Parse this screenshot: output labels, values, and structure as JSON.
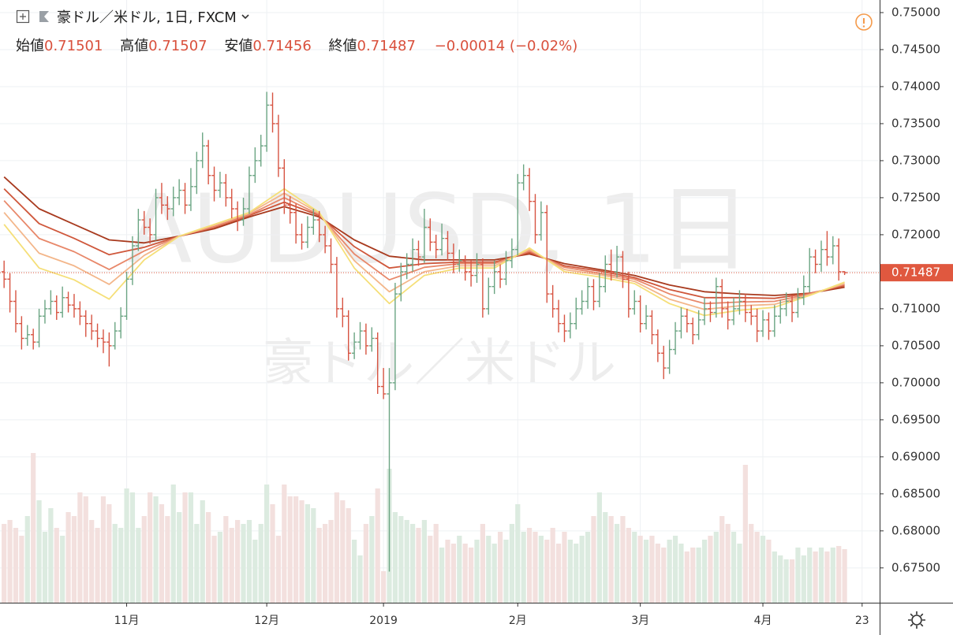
{
  "header": {
    "symbol": "豪ドル／米ドル, 1日, FXCM",
    "open_label": "始値",
    "high_label": "高値",
    "low_label": "安値",
    "close_label": "終値",
    "change": "−0.00014 (−0.02%)"
  },
  "watermark": {
    "line1": "AUDUSD, 1日",
    "line2": "豪ドル／米ドル"
  },
  "chart_data": {
    "type": "ohlc",
    "x": [
      0,
      1,
      2,
      3,
      4,
      5,
      6,
      7,
      8,
      9,
      10,
      11,
      12,
      13,
      14,
      15,
      16,
      17,
      18,
      19,
      20,
      21,
      22,
      23,
      24,
      25,
      26,
      27,
      28,
      29,
      30,
      31,
      32,
      33,
      34,
      35,
      36,
      37,
      38,
      39,
      40,
      41,
      42,
      43,
      44,
      45,
      46,
      47,
      48,
      49,
      50,
      51,
      52,
      53,
      54,
      55,
      56,
      57,
      58,
      59,
      60,
      61,
      62,
      63,
      64,
      65,
      66,
      67,
      68,
      69,
      70,
      71,
      72,
      73,
      74,
      75,
      76,
      77,
      78,
      79,
      80,
      81,
      82,
      83,
      84,
      85,
      86,
      87,
      88,
      89,
      90,
      91,
      92,
      93,
      94,
      95,
      96,
      97,
      98,
      99,
      100,
      101,
      102,
      103,
      104,
      105,
      106,
      107,
      108,
      109,
      110,
      111,
      112,
      113,
      114,
      115,
      116,
      117,
      118,
      119,
      120,
      121,
      122,
      123,
      124,
      125,
      126,
      127,
      128,
      129,
      130,
      131,
      132,
      133,
      134,
      135,
      136,
      137,
      138,
      139,
      140,
      141,
      142,
      143,
      144
    ],
    "open": [
      0.715,
      0.714,
      0.711,
      0.708,
      0.706,
      0.7065,
      0.7055,
      0.709,
      0.71,
      0.711,
      0.7095,
      0.7115,
      0.7105,
      0.71,
      0.709,
      0.708,
      0.707,
      0.706,
      0.7055,
      0.705,
      0.707,
      0.709,
      0.714,
      0.7185,
      0.722,
      0.721,
      0.72,
      0.725,
      0.724,
      0.7235,
      0.725,
      0.726,
      0.724,
      0.7265,
      0.73,
      0.732,
      0.728,
      0.726,
      0.727,
      0.725,
      0.7235,
      0.722,
      0.7235,
      0.728,
      0.73,
      0.732,
      0.7375,
      0.735,
      0.729,
      0.724,
      0.723,
      0.72,
      0.719,
      0.721,
      0.722,
      0.72,
      0.7185,
      0.716,
      0.71,
      0.709,
      0.704,
      0.7055,
      0.707,
      0.705,
      0.706,
      0.6995,
      0.6985,
      0.7,
      0.712,
      0.715,
      0.716,
      0.718,
      0.717,
      0.721,
      0.719,
      0.718,
      0.7195,
      0.7175,
      0.716,
      0.7165,
      0.715,
      0.7145,
      0.716,
      0.71,
      0.713,
      0.715,
      0.714,
      0.7165,
      0.718,
      0.727,
      0.728,
      0.7245,
      0.72,
      0.723,
      0.712,
      0.71,
      0.708,
      0.707,
      0.708,
      0.71,
      0.711,
      0.713,
      0.711,
      0.713,
      0.716,
      0.715,
      0.717,
      0.714,
      0.71,
      0.711,
      0.708,
      0.709,
      0.7065,
      0.704,
      0.702,
      0.7045,
      0.707,
      0.709,
      0.708,
      0.7065,
      0.7085,
      0.71,
      0.7095,
      0.713,
      0.71,
      0.7085,
      0.71,
      0.711,
      0.7095,
      0.709,
      0.707,
      0.7085,
      0.707,
      0.709,
      0.71,
      0.711,
      0.7095,
      0.7115,
      0.713,
      0.717,
      0.716,
      0.718,
      0.717,
      0.7185,
      0.71501
    ],
    "high": [
      0.7165,
      0.7148,
      0.7125,
      0.709,
      0.7078,
      0.7073,
      0.71,
      0.7112,
      0.7125,
      0.7118,
      0.713,
      0.7123,
      0.712,
      0.711,
      0.7098,
      0.7092,
      0.708,
      0.7072,
      0.7068,
      0.7082,
      0.7102,
      0.715,
      0.7198,
      0.7235,
      0.7232,
      0.7222,
      0.7262,
      0.727,
      0.7252,
      0.7265,
      0.7275,
      0.727,
      0.729,
      0.7312,
      0.7338,
      0.7328,
      0.7292,
      0.7285,
      0.7282,
      0.7262,
      0.7245,
      0.725,
      0.7292,
      0.7318,
      0.7335,
      0.7393,
      0.7392,
      0.7362,
      0.7302,
      0.7252,
      0.7242,
      0.7215,
      0.7225,
      0.7235,
      0.7232,
      0.7212,
      0.7195,
      0.717,
      0.7115,
      0.7098,
      0.7068,
      0.7082,
      0.708,
      0.7075,
      0.7068,
      0.702,
      0.702,
      0.7135,
      0.7162,
      0.7175,
      0.7195,
      0.7192,
      0.7235,
      0.7222,
      0.72,
      0.7215,
      0.7205,
      0.7188,
      0.718,
      0.7172,
      0.7165,
      0.7175,
      0.7168,
      0.7142,
      0.7165,
      0.716,
      0.7178,
      0.7195,
      0.7282,
      0.7295,
      0.729,
      0.7255,
      0.7245,
      0.724,
      0.7132,
      0.7112,
      0.7092,
      0.7095,
      0.7115,
      0.7125,
      0.7142,
      0.714,
      0.7148,
      0.7172,
      0.718,
      0.7185,
      0.7178,
      0.715,
      0.7125,
      0.7118,
      0.7105,
      0.7098,
      0.7072,
      0.705,
      0.7058,
      0.7082,
      0.7102,
      0.71,
      0.7088,
      0.7098,
      0.7115,
      0.711,
      0.7142,
      0.714,
      0.711,
      0.7115,
      0.7125,
      0.712,
      0.7105,
      0.71,
      0.7098,
      0.7095,
      0.7105,
      0.7112,
      0.7122,
      0.7118,
      0.7128,
      0.7145,
      0.7182,
      0.718,
      0.7192,
      0.7205,
      0.7198,
      0.7195,
      0.71507
    ],
    "low": [
      0.7128,
      0.7095,
      0.7068,
      0.7045,
      0.705,
      0.7045,
      0.7048,
      0.708,
      0.7092,
      0.7085,
      0.7088,
      0.7095,
      0.7088,
      0.7078,
      0.7062,
      0.7058,
      0.7048,
      0.704,
      0.7022,
      0.7045,
      0.706,
      0.7085,
      0.7132,
      0.7178,
      0.72,
      0.7188,
      0.7192,
      0.7228,
      0.722,
      0.7225,
      0.724,
      0.7228,
      0.7232,
      0.7255,
      0.729,
      0.7268,
      0.7245,
      0.725,
      0.7238,
      0.7222,
      0.7205,
      0.7212,
      0.7228,
      0.727,
      0.7292,
      0.7312,
      0.7338,
      0.7278,
      0.7228,
      0.7215,
      0.7188,
      0.718,
      0.7182,
      0.72,
      0.719,
      0.7175,
      0.7148,
      0.7088,
      0.7075,
      0.703,
      0.7032,
      0.7045,
      0.7038,
      0.7042,
      0.6985,
      0.6978,
      0.6745,
      0.699,
      0.711,
      0.714,
      0.715,
      0.7158,
      0.7162,
      0.7178,
      0.7168,
      0.7172,
      0.7165,
      0.7148,
      0.715,
      0.7138,
      0.713,
      0.7135,
      0.7088,
      0.7092,
      0.712,
      0.7128,
      0.7132,
      0.7155,
      0.7172,
      0.726,
      0.7232,
      0.7188,
      0.7192,
      0.7108,
      0.7088,
      0.7068,
      0.7055,
      0.706,
      0.7072,
      0.7092,
      0.71,
      0.7098,
      0.7102,
      0.7122,
      0.7138,
      0.7142,
      0.7128,
      0.7088,
      0.7092,
      0.7068,
      0.7072,
      0.7052,
      0.7028,
      0.7005,
      0.7012,
      0.7038,
      0.706,
      0.7068,
      0.7052,
      0.7058,
      0.7078,
      0.7082,
      0.7088,
      0.7088,
      0.7072,
      0.7078,
      0.7092,
      0.7082,
      0.7078,
      0.7055,
      0.7062,
      0.7058,
      0.7062,
      0.708,
      0.709,
      0.7082,
      0.7088,
      0.7105,
      0.7122,
      0.7148,
      0.715,
      0.7158,
      0.716,
      0.7138,
      0.71456
    ],
    "close": [
      0.714,
      0.711,
      0.708,
      0.706,
      0.7065,
      0.7055,
      0.709,
      0.71,
      0.711,
      0.7095,
      0.7115,
      0.7105,
      0.71,
      0.709,
      0.708,
      0.707,
      0.706,
      0.7055,
      0.705,
      0.707,
      0.709,
      0.714,
      0.7185,
      0.722,
      0.721,
      0.72,
      0.725,
      0.724,
      0.7235,
      0.725,
      0.726,
      0.724,
      0.7265,
      0.73,
      0.732,
      0.728,
      0.726,
      0.727,
      0.725,
      0.7235,
      0.722,
      0.7235,
      0.728,
      0.73,
      0.732,
      0.7375,
      0.735,
      0.729,
      0.724,
      0.723,
      0.72,
      0.719,
      0.721,
      0.722,
      0.72,
      0.7185,
      0.716,
      0.71,
      0.709,
      0.704,
      0.7055,
      0.707,
      0.705,
      0.706,
      0.6995,
      0.6985,
      0.7,
      0.712,
      0.715,
      0.716,
      0.718,
      0.717,
      0.721,
      0.719,
      0.718,
      0.7195,
      0.7175,
      0.716,
      0.7165,
      0.715,
      0.7145,
      0.716,
      0.71,
      0.713,
      0.715,
      0.714,
      0.7165,
      0.718,
      0.727,
      0.728,
      0.7245,
      0.72,
      0.723,
      0.712,
      0.71,
      0.708,
      0.707,
      0.708,
      0.71,
      0.711,
      0.713,
      0.711,
      0.713,
      0.716,
      0.715,
      0.717,
      0.714,
      0.71,
      0.711,
      0.708,
      0.709,
      0.7065,
      0.704,
      0.702,
      0.7045,
      0.707,
      0.709,
      0.708,
      0.7065,
      0.7085,
      0.71,
      0.7095,
      0.713,
      0.71,
      0.7085,
      0.71,
      0.711,
      0.7095,
      0.709,
      0.707,
      0.7085,
      0.707,
      0.709,
      0.71,
      0.711,
      0.7095,
      0.7115,
      0.713,
      0.717,
      0.716,
      0.718,
      0.717,
      0.7185,
      0.715,
      0.71487
    ],
    "volume": [
      100,
      105,
      95,
      85,
      110,
      190,
      130,
      90,
      120,
      95,
      85,
      115,
      110,
      140,
      135,
      105,
      95,
      135,
      125,
      100,
      95,
      145,
      140,
      95,
      110,
      140,
      135,
      125,
      110,
      150,
      115,
      140,
      140,
      100,
      130,
      115,
      85,
      90,
      110,
      95,
      105,
      100,
      105,
      80,
      100,
      150,
      125,
      85,
      150,
      135,
      135,
      130,
      125,
      120,
      95,
      100,
      105,
      140,
      130,
      120,
      80,
      60,
      100,
      110,
      145,
      40,
      170,
      115,
      110,
      105,
      100,
      95,
      105,
      85,
      100,
      70,
      80,
      75,
      85,
      75,
      70,
      80,
      100,
      85,
      75,
      90,
      80,
      100,
      125,
      90,
      95,
      90,
      85,
      80,
      95,
      75,
      90,
      80,
      75,
      85,
      90,
      110,
      140,
      115,
      110,
      100,
      110,
      95,
      90,
      85,
      80,
      85,
      75,
      70,
      80,
      85,
      75,
      65,
      70,
      70,
      80,
      85,
      90,
      110,
      100,
      90,
      75,
      175,
      100,
      90,
      85,
      80,
      65,
      60,
      55,
      55,
      70,
      60,
      70,
      65,
      70,
      65,
      70,
      72,
      68
    ],
    "volume_lim": [
      0,
      200
    ],
    "up_color": "#6ba583",
    "down_color": "#d75442",
    "volume_up_color": "#dcebe0",
    "volume_down_color": "#f3e0de",
    "last_price": 0.71487,
    "last_price_color": "#e0583f",
    "ma_x": [
      0,
      6,
      12,
      18,
      24,
      30,
      36,
      42,
      48,
      54,
      60,
      66,
      72,
      78,
      84,
      90,
      96,
      102,
      108,
      114,
      120,
      126,
      132,
      138,
      144
    ],
    "ma_series": [
      {
        "color": "#a83a1e",
        "values": [
          0.7278,
          0.7235,
          0.7214,
          0.7193,
          0.7189,
          0.7198,
          0.7208,
          0.7224,
          0.7238,
          0.7224,
          0.7193,
          0.7171,
          0.7166,
          0.7166,
          0.7166,
          0.7174,
          0.7161,
          0.7153,
          0.7145,
          0.7132,
          0.7123,
          0.712,
          0.7118,
          0.7121,
          0.7129
        ]
      },
      {
        "color": "#cf573b",
        "values": [
          0.7262,
          0.7215,
          0.7195,
          0.7173,
          0.7183,
          0.7198,
          0.721,
          0.7226,
          0.7244,
          0.7226,
          0.7184,
          0.7155,
          0.7161,
          0.7163,
          0.7163,
          0.7176,
          0.7158,
          0.7151,
          0.7142,
          0.7126,
          0.7115,
          0.7115,
          0.7114,
          0.7121,
          0.7131
        ]
      },
      {
        "color": "#e8886a",
        "values": [
          0.7246,
          0.7195,
          0.7177,
          0.7153,
          0.7178,
          0.7198,
          0.7211,
          0.7227,
          0.725,
          0.7227,
          0.7174,
          0.7139,
          0.7156,
          0.7161,
          0.7161,
          0.7178,
          0.7156,
          0.7148,
          0.714,
          0.712,
          0.7107,
          0.7109,
          0.711,
          0.712,
          0.7133
        ]
      },
      {
        "color": "#f3b68a",
        "values": [
          0.723,
          0.7175,
          0.7158,
          0.7133,
          0.7172,
          0.7198,
          0.7213,
          0.7229,
          0.7256,
          0.7229,
          0.7165,
          0.7123,
          0.715,
          0.7158,
          0.7158,
          0.718,
          0.7153,
          0.7146,
          0.7137,
          0.7113,
          0.7099,
          0.7104,
          0.7106,
          0.7119,
          0.7134
        ]
      },
      {
        "color": "#f5df78",
        "values": [
          0.7214,
          0.7155,
          0.7139,
          0.7113,
          0.7166,
          0.7198,
          0.7214,
          0.723,
          0.7262,
          0.723,
          0.7155,
          0.7107,
          0.7145,
          0.7155,
          0.7155,
          0.7182,
          0.715,
          0.7143,
          0.7134,
          0.7107,
          0.7091,
          0.7098,
          0.7102,
          0.7118,
          0.7136
        ]
      }
    ],
    "xlim": [
      -0.7,
      150
    ],
    "xticks": [
      {
        "value": 21,
        "label": "11月"
      },
      {
        "value": 45,
        "label": "12月"
      },
      {
        "value": 65,
        "label": "2019"
      },
      {
        "value": 88,
        "label": "2月"
      },
      {
        "value": 109,
        "label": "3月"
      },
      {
        "value": 130,
        "label": "4月"
      },
      {
        "value": 147,
        "label": "23"
      }
    ],
    "ylim": [
      0.6703,
      0.7517
    ],
    "yticks": [
      {
        "value": 0.675,
        "label": "0.67500"
      },
      {
        "value": 0.68,
        "label": "0.68000"
      },
      {
        "value": 0.685,
        "label": "0.68500"
      },
      {
        "value": 0.69,
        "label": "0.69000"
      },
      {
        "value": 0.695,
        "label": "0.69500"
      },
      {
        "value": 0.7,
        "label": "0.70000"
      },
      {
        "value": 0.705,
        "label": "0.70500"
      },
      {
        "value": 0.71,
        "label": "0.71000"
      },
      {
        "value": 0.715,
        "label": "0.71500"
      },
      {
        "value": 0.72,
        "label": "0.72000"
      },
      {
        "value": 0.725,
        "label": "0.72500"
      },
      {
        "value": 0.73,
        "label": "0.73000"
      },
      {
        "value": 0.735,
        "label": "0.73500"
      },
      {
        "value": 0.74,
        "label": "0.74000"
      },
      {
        "value": 0.745,
        "label": "0.74500"
      },
      {
        "value": 0.75,
        "label": "0.75000"
      }
    ],
    "grid": true
  }
}
